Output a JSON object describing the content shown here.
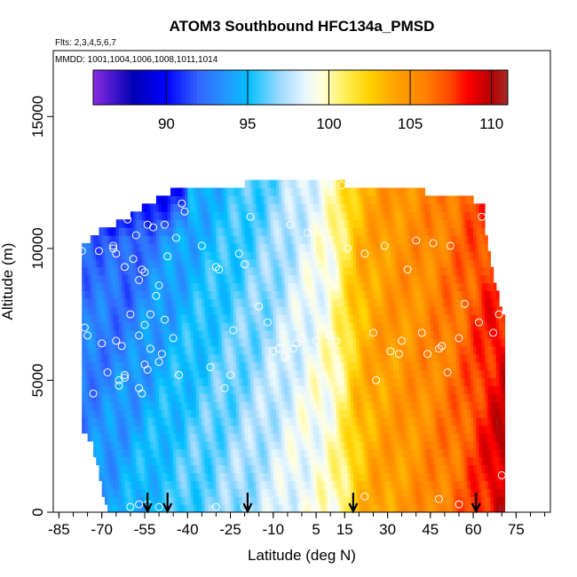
{
  "chart_data": {
    "type": "heatmap",
    "title": "ATOM3 Southbound HFC134a_PMSD",
    "subtitle_flights": "Flts: 2,3,4,5,6,7",
    "subtitle_dates": "MMDD: 1001,1004,1006,1008,1011,1014",
    "xlabel": "Latitude (deg N)",
    "ylabel": "Altitude (m)",
    "xlim": [
      -87,
      87
    ],
    "ylim": [
      0,
      17500
    ],
    "x_ticks": [
      -85,
      -70,
      -55,
      -40,
      -25,
      -10,
      5,
      15,
      30,
      45,
      60,
      75
    ],
    "x_tick_labels": [
      "-85",
      "-70",
      "-55",
      "-40",
      "-25",
      "-10",
      "5",
      "15",
      "30",
      "45",
      "60",
      "75"
    ],
    "y_ticks": [
      0,
      5000,
      10000,
      15000
    ],
    "y_tick_labels": [
      "0",
      "5000",
      "10000",
      "15000"
    ],
    "colorbar": {
      "range": [
        85.5,
        111
      ],
      "ticks": [
        90,
        95,
        100,
        105,
        110
      ],
      "tick_labels": [
        "90",
        "95",
        "100",
        "105",
        "110"
      ],
      "stops": [
        {
          "value": 85.5,
          "color": "#8a2be2"
        },
        {
          "value": 88,
          "color": "#0000b4"
        },
        {
          "value": 90,
          "color": "#0000ff"
        },
        {
          "value": 92,
          "color": "#3366ff"
        },
        {
          "value": 94,
          "color": "#1ea0ff"
        },
        {
          "value": 95,
          "color": "#00bfff"
        },
        {
          "value": 97,
          "color": "#9fd9ff"
        },
        {
          "value": 98.5,
          "color": "#e8f6ff"
        },
        {
          "value": 99.5,
          "color": "#ffffe0"
        },
        {
          "value": 101,
          "color": "#ffee55"
        },
        {
          "value": 102.5,
          "color": "#ffd200"
        },
        {
          "value": 104,
          "color": "#ffa500"
        },
        {
          "value": 106,
          "color": "#ff7f00"
        },
        {
          "value": 107.5,
          "color": "#ff4500"
        },
        {
          "value": 108.5,
          "color": "#ff0000"
        },
        {
          "value": 110,
          "color": "#b40000"
        },
        {
          "value": 111,
          "color": "#a52a2a"
        }
      ]
    },
    "arrow_latitudes": [
      -54,
      -47,
      -19,
      18,
      61
    ],
    "field_notes": "Value field: ~88-93 at high southern latitudes aloft, ~95-97 in southern mid-latitudes, ~100 near equator/10N, ~104-107 northern mid-latitudes, ~108-110 near 70N.",
    "samples": [
      [
        -77,
        9900
      ],
      [
        -76,
        7000
      ],
      [
        -75,
        6700
      ],
      [
        -73,
        4500
      ],
      [
        -71,
        9900
      ],
      [
        -70,
        6400
      ],
      [
        -68,
        5300
      ],
      [
        -66,
        10000
      ],
      [
        -66,
        10100
      ],
      [
        -65,
        9800
      ],
      [
        -65,
        6500
      ],
      [
        -64,
        5000
      ],
      [
        -64,
        4800
      ],
      [
        -63,
        6300
      ],
      [
        -62,
        5200
      ],
      [
        -62,
        5100
      ],
      [
        -62,
        9300
      ],
      [
        -61,
        11100
      ],
      [
        -60,
        7500
      ],
      [
        -59,
        9600
      ],
      [
        -58,
        10500
      ],
      [
        -57,
        8800
      ],
      [
        -57,
        6700
      ],
      [
        -57,
        4700
      ],
      [
        -56,
        9200
      ],
      [
        -56,
        4500
      ],
      [
        -55,
        9100
      ],
      [
        -55,
        7100
      ],
      [
        -55,
        5600
      ],
      [
        -54,
        5400
      ],
      [
        -54,
        10900
      ],
      [
        -53,
        7500
      ],
      [
        -53,
        6200
      ],
      [
        -52,
        10800
      ],
      [
        -51,
        8200
      ],
      [
        -50,
        8600
      ],
      [
        -50,
        5700
      ],
      [
        -49,
        6000
      ],
      [
        -48,
        10900
      ],
      [
        -48,
        7300
      ],
      [
        -47,
        9700
      ],
      [
        -45,
        6600
      ],
      [
        -44,
        10400
      ],
      [
        -43,
        5200
      ],
      [
        -42,
        11700
      ],
      [
        -41,
        11400
      ],
      [
        -35,
        10100
      ],
      [
        -32,
        5500
      ],
      [
        -30,
        9300
      ],
      [
        -29,
        9200
      ],
      [
        -27,
        4700
      ],
      [
        -25,
        5200
      ],
      [
        -24,
        6900
      ],
      [
        -22,
        9800
      ],
      [
        -20,
        9400
      ],
      [
        -18,
        11200
      ],
      [
        -15,
        7800
      ],
      [
        -12,
        7200
      ],
      [
        -10,
        6100
      ],
      [
        -8,
        6200
      ],
      [
        -6,
        5900
      ],
      [
        -4,
        10900
      ],
      [
        -3,
        6200
      ],
      [
        -2,
        6400
      ],
      [
        0,
        6600
      ],
      [
        2,
        10600
      ],
      [
        4,
        10700
      ],
      [
        5,
        6500
      ],
      [
        7,
        6900
      ],
      [
        8,
        5100
      ],
      [
        10,
        6700
      ],
      [
        12,
        6500
      ],
      [
        14,
        12400
      ],
      [
        16,
        10000
      ],
      [
        22,
        9800
      ],
      [
        25,
        6800
      ],
      [
        26,
        5000
      ],
      [
        29,
        10100
      ],
      [
        31,
        6100
      ],
      [
        34,
        6000
      ],
      [
        35,
        6500
      ],
      [
        37,
        9200
      ],
      [
        40,
        10300
      ],
      [
        42,
        6800
      ],
      [
        44,
        6000
      ],
      [
        46,
        10200
      ],
      [
        48,
        6200
      ],
      [
        49,
        6300
      ],
      [
        51,
        5300
      ],
      [
        52,
        10100
      ],
      [
        55,
        6600
      ],
      [
        57,
        7900
      ],
      [
        62,
        7200
      ],
      [
        63,
        11200
      ],
      [
        67,
        6800
      ],
      [
        69,
        7500
      ],
      [
        70,
        1400
      ],
      [
        -60,
        200
      ],
      [
        -57,
        300
      ],
      [
        -54,
        300
      ],
      [
        -50,
        200
      ],
      [
        -30,
        200
      ],
      [
        -20,
        200
      ],
      [
        0,
        200
      ],
      [
        5,
        200
      ],
      [
        10,
        200
      ],
      [
        22,
        600
      ],
      [
        48,
        500
      ],
      [
        55,
        300
      ]
    ]
  }
}
